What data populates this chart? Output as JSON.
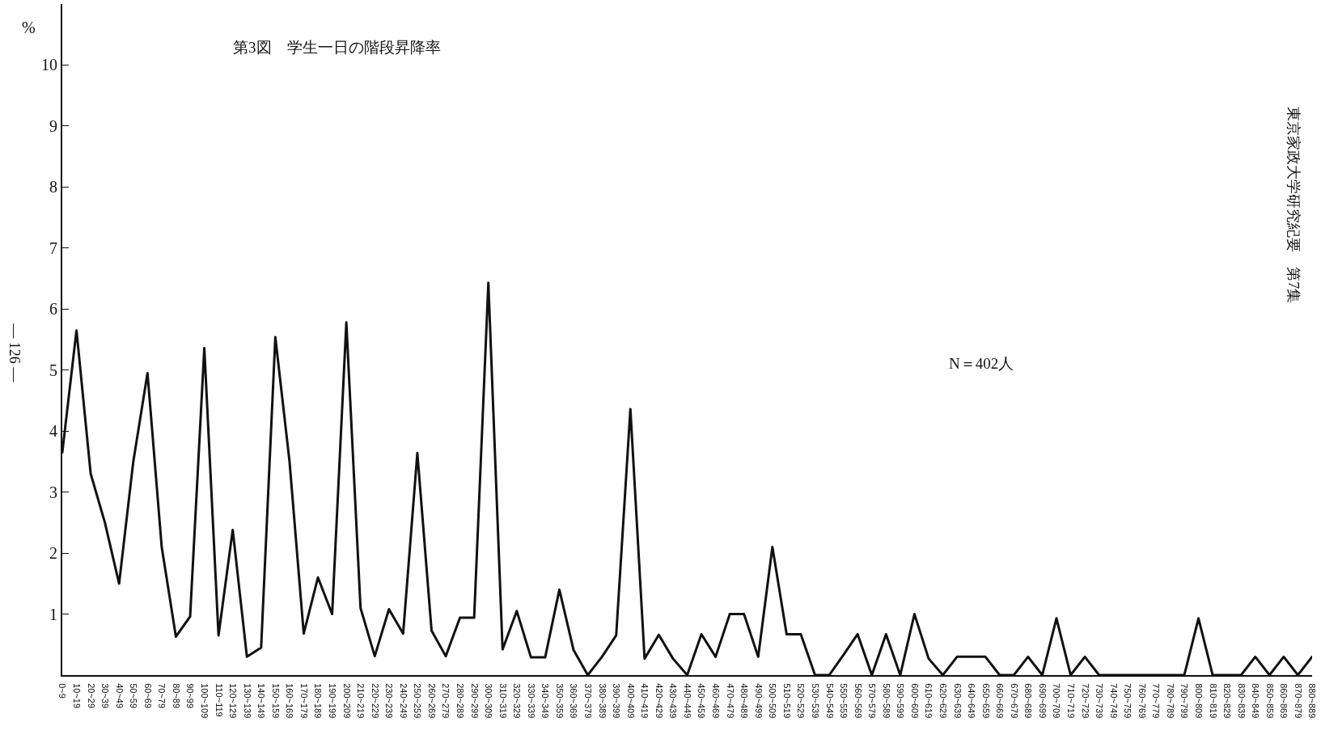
{
  "chart_data": {
    "type": "line",
    "title": "第3図　学生一日の階段昇降率",
    "ylabel": "%",
    "categories": [
      "0~9",
      "10~19",
      "20~29",
      "30~39",
      "40~49",
      "50~59",
      "60~69",
      "70~79",
      "80~89",
      "90~99",
      "100~109",
      "110~119",
      "120~129",
      "130~139",
      "140~149",
      "150~159",
      "160~169",
      "170~179",
      "180~189",
      "190~199",
      "200~209",
      "210~219",
      "220~229",
      "230~239",
      "240~249",
      "250~259",
      "260~269",
      "270~279",
      "280~289",
      "290~299",
      "300~309",
      "310~319",
      "320~329",
      "330~339",
      "340~349",
      "350~359",
      "360~369",
      "370~379",
      "380~389",
      "390~399",
      "400~409",
      "410~419",
      "420~429",
      "430~439",
      "440~449",
      "450~459",
      "460~469",
      "470~479",
      "480~489",
      "490~499",
      "500~509",
      "510~519",
      "520~529",
      "530~539",
      "540~549",
      "550~559",
      "560~569",
      "570~579",
      "580~589",
      "590~599",
      "600~609",
      "610~619",
      "620~629",
      "630~639",
      "640~649",
      "650~659",
      "660~669",
      "670~679",
      "680~689",
      "690~699",
      "700~709",
      "710~719",
      "720~729",
      "730~739",
      "740~749",
      "750~759",
      "760~769",
      "770~779",
      "780~789",
      "790~799",
      "800~809",
      "810~819",
      "820~829",
      "830~839",
      "840~849",
      "850~859",
      "860~869",
      "870~879",
      "880~889"
    ],
    "series": [
      {
        "color": "#111111",
        "values": [
          3.65,
          5.65,
          3.3,
          2.5,
          1.5,
          3.5,
          4.95,
          2.1,
          0.63,
          0.96,
          5.36,
          0.65,
          2.38,
          0.3,
          0.45,
          5.54,
          3.5,
          0.68,
          1.6,
          1.0,
          5.78,
          1.1,
          0.31,
          1.08,
          0.68,
          3.64,
          0.73,
          0.31,
          0.94,
          0.94,
          6.43,
          0.42,
          1.05,
          0.29,
          0.29,
          1.4,
          0.41,
          0,
          0.3,
          0.65,
          4.36,
          0.27,
          0.66,
          0.27,
          0,
          0.67,
          0.3,
          1.0,
          1.0,
          0.3,
          2.1,
          0.67,
          0.67,
          0,
          0,
          0.33,
          0.67,
          0,
          0.67,
          0,
          1.0,
          0.27,
          0,
          0.3,
          0.3,
          0.3,
          0,
          0,
          0.3,
          0,
          0.93,
          0,
          0.3,
          0,
          0,
          0,
          0,
          0,
          0,
          0,
          0.93,
          0,
          0,
          0,
          0.3,
          0,
          0.3,
          0,
          0.3
        ]
      }
    ],
    "ylim": [
      0,
      11
    ],
    "yticks": [
      1,
      2,
      3,
      4,
      5,
      6,
      7,
      8,
      9,
      10
    ],
    "grid": false,
    "marker": "none",
    "line_style": "solid",
    "annotations": [
      "N＝402人",
      "東京家政大学研究紀要　第7集",
      "— 126 —"
    ]
  }
}
